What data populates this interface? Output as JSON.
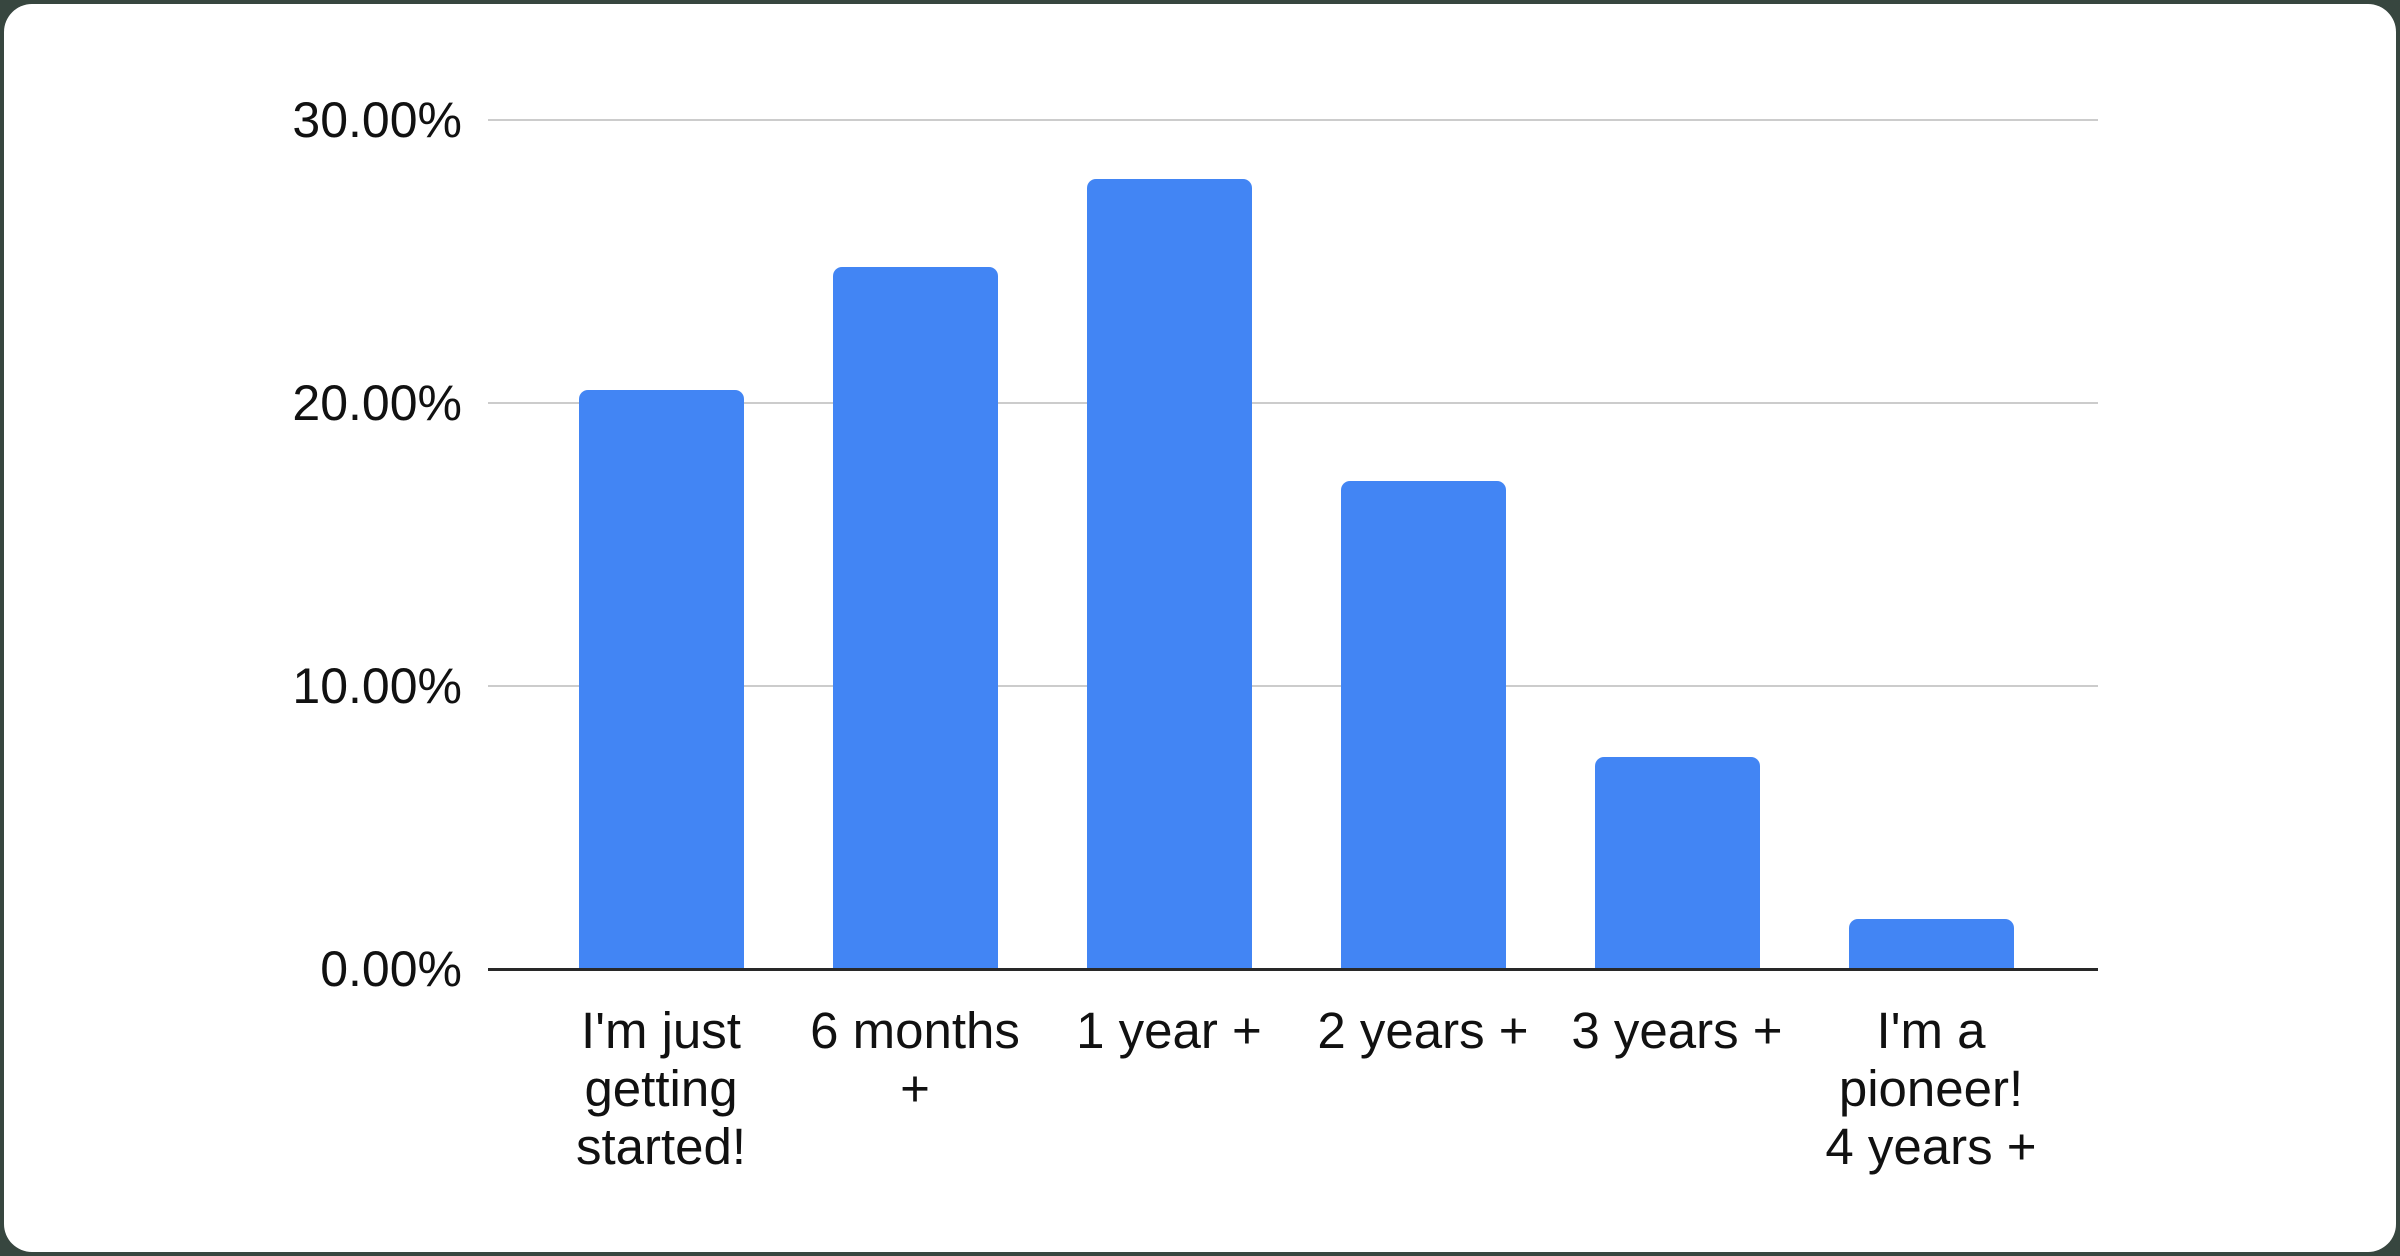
{
  "page": {
    "background_color": "#37463f",
    "card_color": "#ffffff"
  },
  "chart_data": {
    "type": "bar",
    "title": "",
    "categories": [
      "I'm just getting started!",
      "6 months +",
      "1 year +",
      "2 years +",
      "3 years +",
      "I'm a pioneer! 4 years +"
    ],
    "category_lines": [
      [
        "I'm just",
        "getting",
        "started!"
      ],
      [
        "6 months",
        "+"
      ],
      [
        "1 year +"
      ],
      [
        "2 years +"
      ],
      [
        "3 years +"
      ],
      [
        "I'm a",
        "pioneer!",
        "4 years +"
      ]
    ],
    "values": [
      20.45,
      24.8,
      27.9,
      17.25,
      7.5,
      1.75
    ],
    "unit": "%",
    "ylim": [
      0,
      30
    ],
    "y_tick_values": [
      0,
      10,
      20,
      30
    ],
    "y_tick_labels": [
      "0.00%",
      "10.00%",
      "20.00%",
      "30.00%"
    ],
    "grid": true,
    "legend": "none",
    "bar_color": "#4285f4",
    "gridline_color": "#cccccc",
    "axis_line_color": "#282828",
    "label_color": "#111111"
  }
}
